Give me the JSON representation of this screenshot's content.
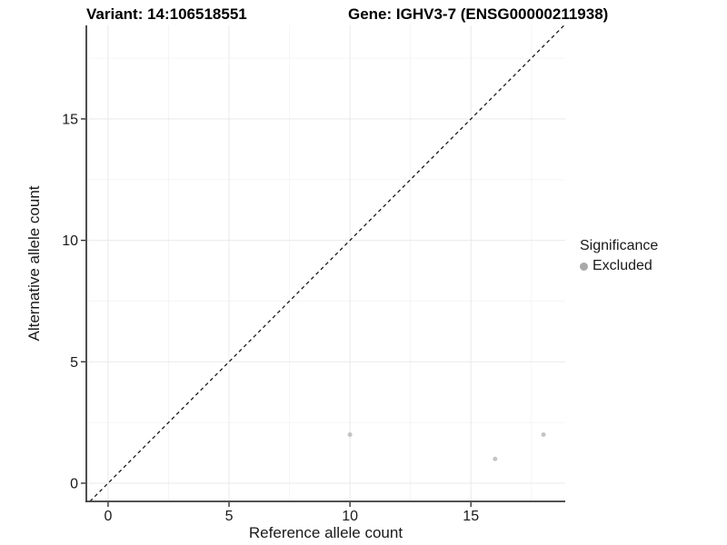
{
  "titles": {
    "variant": "Variant: 14:106518551",
    "gene": "Gene: IGHV3-7 (ENSG00000211938)"
  },
  "legend": {
    "title": "Significance",
    "items": [
      {
        "label": "Excluded",
        "color": "#a9a9a9"
      }
    ]
  },
  "chart_data": {
    "type": "scatter",
    "title_left": "Variant: 14:106518551",
    "title_right": "Gene: IGHV3-7 (ENSG00000211938)",
    "xlabel": "Reference allele count",
    "ylabel": "Alternative allele count",
    "xlim": [
      -0.9,
      18.9
    ],
    "ylim": [
      -0.75,
      18.85
    ],
    "x_major_ticks": [
      0,
      5,
      10,
      15
    ],
    "y_major_ticks": [
      0,
      5,
      10,
      15
    ],
    "x_minor_ticks": [
      2.5,
      7.5,
      12.5,
      17.5
    ],
    "y_minor_ticks": [
      2.5,
      7.5,
      12.5,
      17.5
    ],
    "grid": "major+minor",
    "legend_position": "right",
    "series": [
      {
        "name": "Excluded",
        "color": "#c4c4c4",
        "point_radius": 2.5,
        "points": [
          [
            10,
            2
          ],
          [
            16,
            1
          ],
          [
            18,
            2
          ]
        ]
      }
    ],
    "reference_line": {
      "type": "identity",
      "style": "dashed",
      "color": "#1a1a1a"
    },
    "colors": {
      "grid_major": "#e9e9e9",
      "grid_minor": "#f5f5f5",
      "axis_line": "#3a3a3a",
      "tick_mark": "#333333",
      "tick_text": "#1a1a1a"
    }
  }
}
